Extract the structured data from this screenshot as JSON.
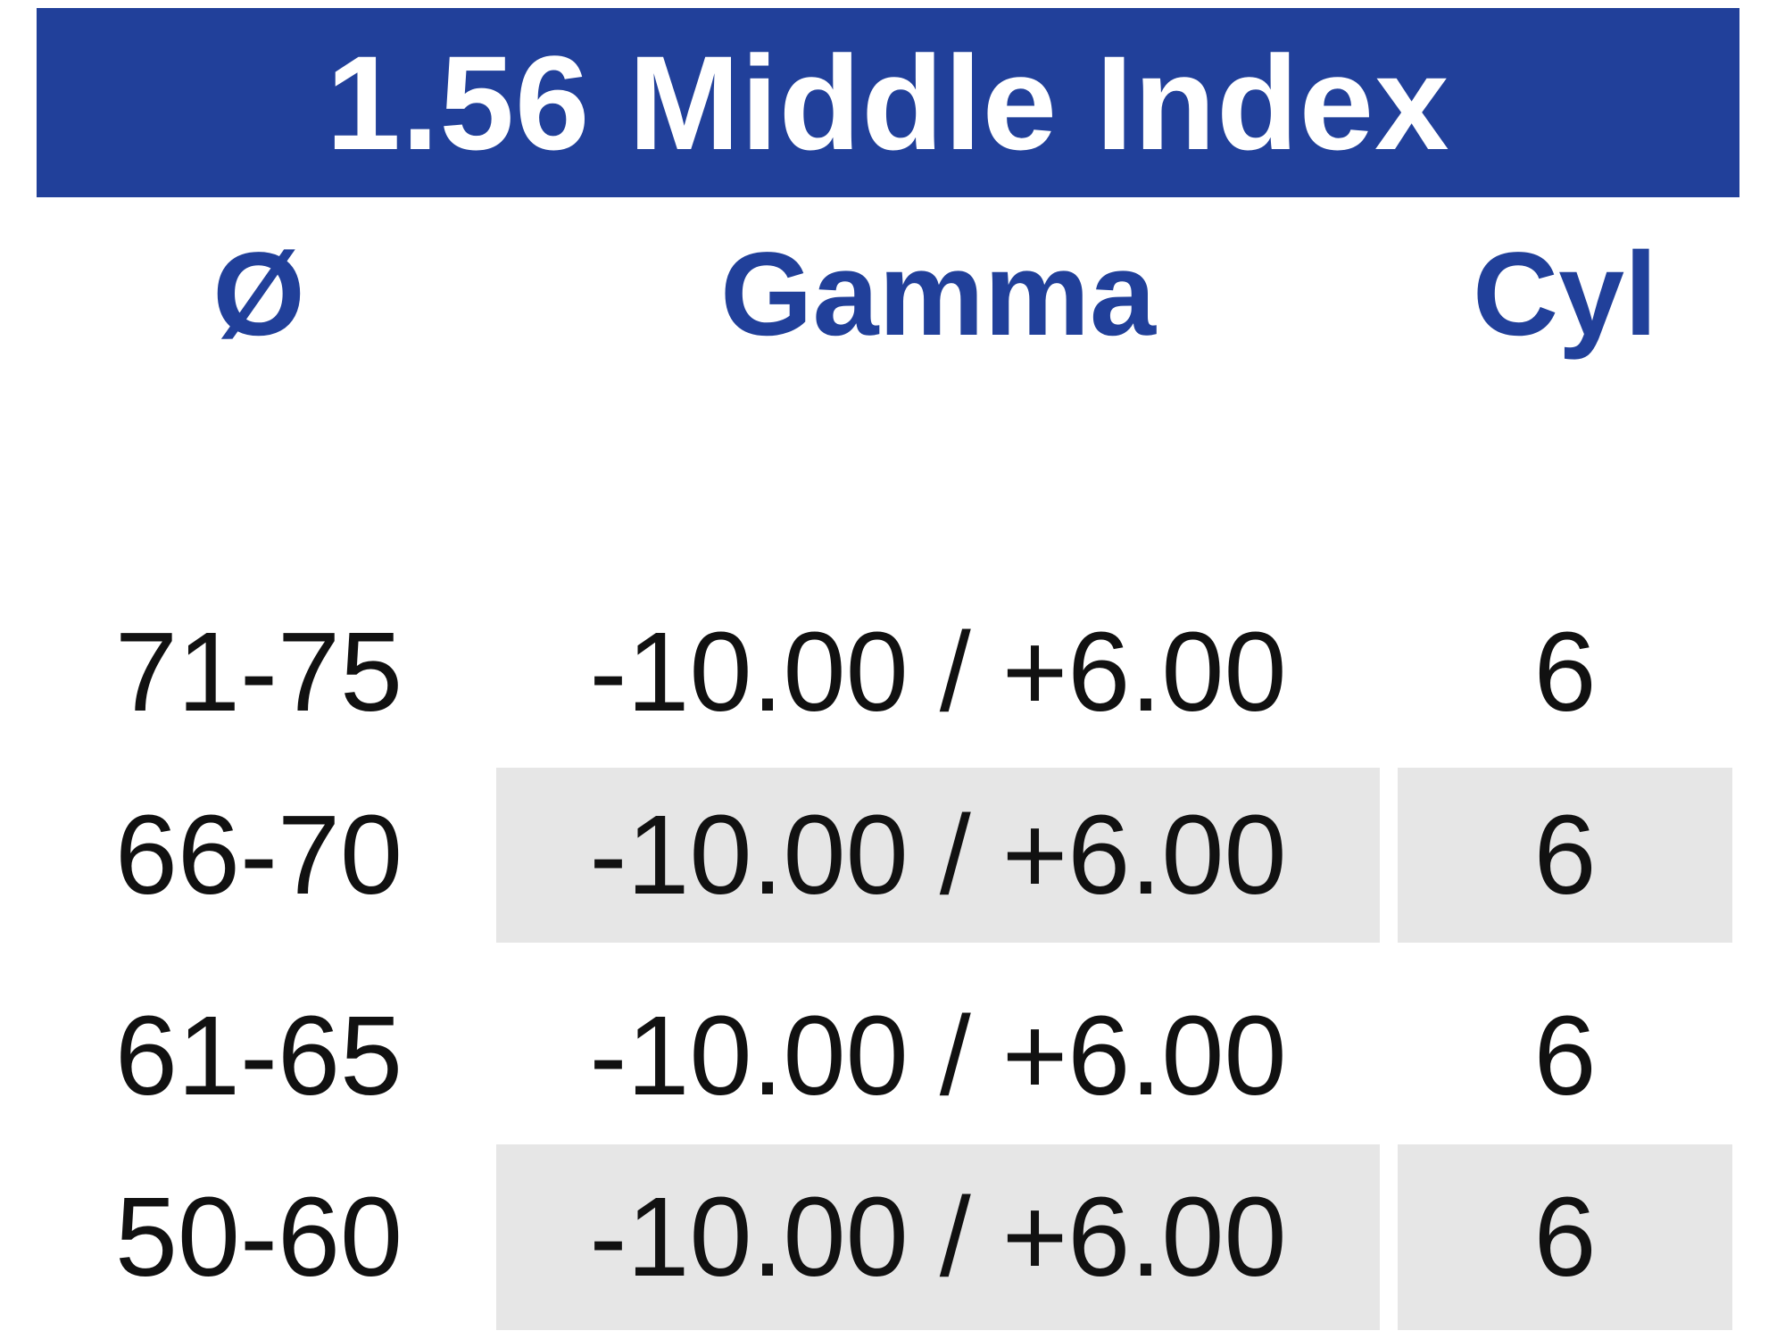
{
  "header": {
    "title": "1.56 Middle Index"
  },
  "columns": [
    "Ø",
    "Gamma",
    "Cyl"
  ],
  "rows": [
    {
      "diameter": "71-75",
      "gamma": "-10.00 / +6.00",
      "cyl": "6",
      "striped": false
    },
    {
      "diameter": "66-70",
      "gamma": "-10.00 / +6.00",
      "cyl": "6",
      "striped": true
    },
    {
      "diameter": "61-65",
      "gamma": "-10.00 / +6.00",
      "cyl": "6",
      "striped": false
    },
    {
      "diameter": "50-60",
      "gamma": "-10.00 / +6.00",
      "cyl": "6",
      "striped": true
    }
  ],
  "colors": {
    "header_bg": "#21409a",
    "header_text": "#ffffff",
    "column_header_text": "#21409a",
    "stripe_bg": "#e6e6e6",
    "body_text": "#111111",
    "page_bg": "#ffffff"
  }
}
